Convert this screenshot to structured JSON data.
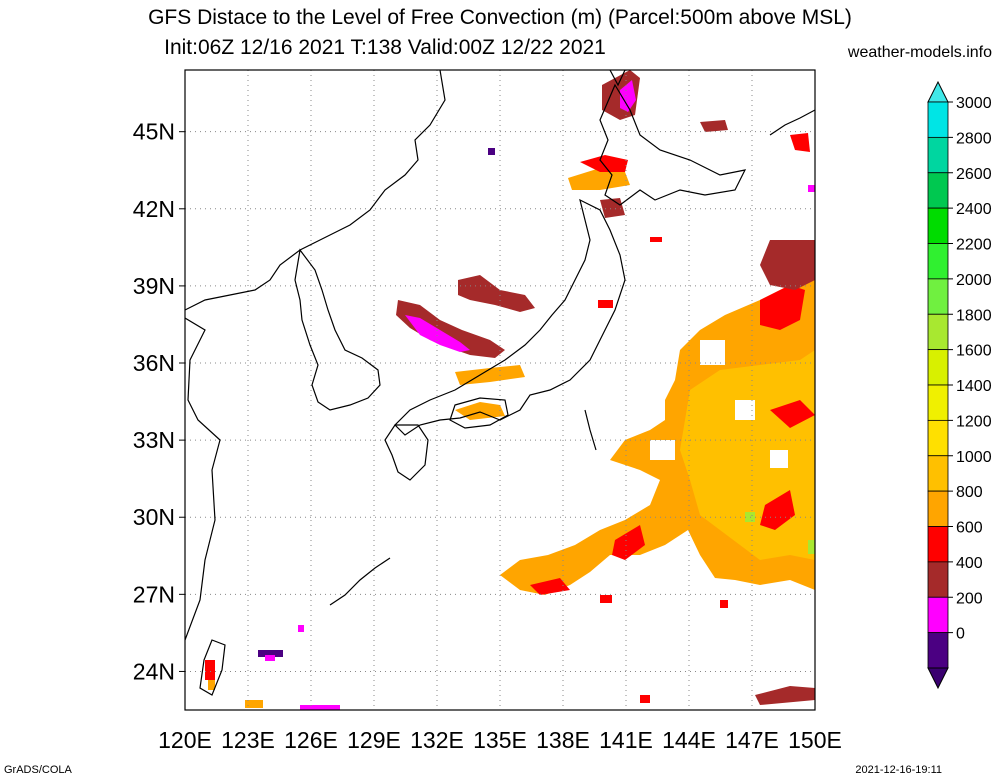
{
  "header": {
    "title_line1": "GFS Distace to the Level of Free Convection (m) (Parcel:500m above MSL)",
    "title_line2": "Init:06Z 12/16 2021 T:138 Valid:00Z 12/22 2021",
    "brand": "weather-models.info"
  },
  "footer": {
    "left": "GrADS/COLA",
    "right": "2021-12-16-19:11"
  },
  "map": {
    "lon_labels": [
      "120E",
      "123E",
      "126E",
      "129E",
      "132E",
      "135E",
      "138E",
      "141E",
      "144E",
      "147E",
      "150E"
    ],
    "lat_labels": [
      "45N",
      "42N",
      "39N",
      "36N",
      "33N",
      "30N",
      "27N",
      "24N"
    ],
    "lon_range": [
      120,
      150
    ],
    "lat_range": [
      22.5,
      47.4
    ],
    "grid": "dotted"
  },
  "legend": {
    "labels": [
      "3000",
      "2800",
      "2600",
      "2400",
      "2200",
      "2000",
      "1800",
      "1600",
      "1400",
      "1200",
      "1000",
      "800",
      "600",
      "400",
      "200",
      "0"
    ],
    "colors": [
      "#00e5e5",
      "#00d6a0",
      "#00c850",
      "#00dc00",
      "#30f030",
      "#70f040",
      "#a8e830",
      "#d8f000",
      "#f0f000",
      "#ffe000",
      "#ffc000",
      "#ffa500",
      "#ff0000",
      "#a52a2a",
      "#ff00ff",
      "#4b0082"
    ],
    "top_arrow_color": "#40e8e8",
    "bottom_arrow_color": "#3a0070"
  },
  "colors": {
    "orange": "#ffa500",
    "light_orange": "#ffc000",
    "red": "#ff0000",
    "brown": "#a52a2a",
    "magenta": "#ff00ff",
    "indigo": "#4b0082",
    "green": "#a8e830"
  }
}
